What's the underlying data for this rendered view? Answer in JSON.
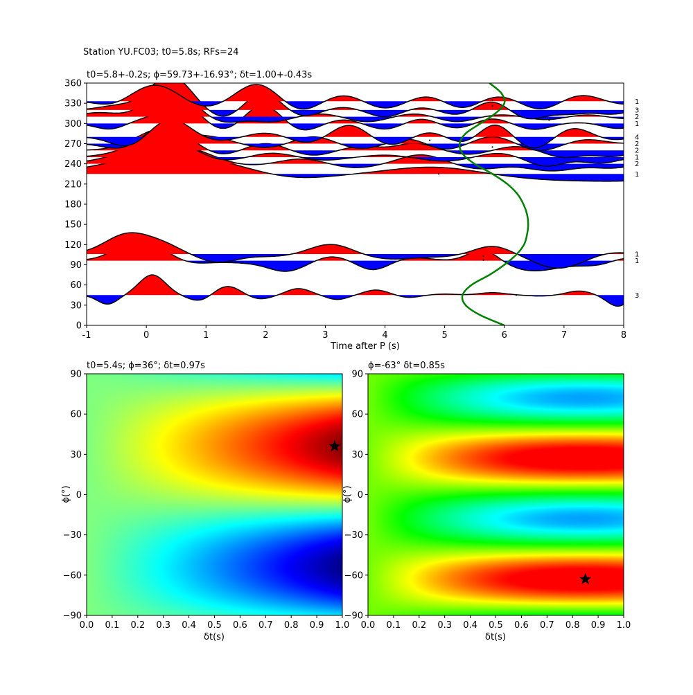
{
  "suptitle": "Station YU.FC03; t0=5.8s; RFs=24",
  "chart_data": [
    {
      "type": "line",
      "id": "rf_traces",
      "title": "t0=5.8+-0.2s; ϕ=59.73+-16.93°; δt=1.00+-0.43s",
      "xlabel": "Time after P (s)",
      "ylabel": "",
      "xlim": [
        -1,
        8
      ],
      "ylim": [
        0,
        360
      ],
      "xticks": [
        -1,
        0,
        1,
        2,
        3,
        4,
        5,
        6,
        7,
        8
      ],
      "yticks": [
        0,
        30,
        60,
        90,
        120,
        150,
        180,
        210,
        240,
        270,
        300,
        330,
        360
      ],
      "grid": false,
      "positive_fill": "#ff0000",
      "negative_fill": "#0000ff",
      "traces": [
        {
          "baz": 45,
          "count": "3",
          "amp": 30,
          "peaks": [
            [
              -0.65,
              -0.45,
              0.17
            ],
            [
              0.1,
              1.0,
              0.22
            ],
            [
              0.9,
              -0.3,
              0.2
            ],
            [
              1.35,
              0.45,
              0.22
            ],
            [
              1.9,
              -0.2,
              0.2
            ],
            [
              2.55,
              0.32,
              0.2
            ],
            [
              3.2,
              -0.22,
              0.18
            ],
            [
              3.85,
              0.25,
              0.2
            ],
            [
              4.4,
              -0.12,
              0.18
            ],
            [
              5.0,
              0.05,
              0.2
            ],
            [
              5.8,
              0.12,
              0.22
            ],
            [
              6.6,
              -0.05,
              0.2
            ],
            [
              7.25,
              0.2,
              0.2
            ],
            [
              7.9,
              -0.55,
              0.18
            ]
          ]
        },
        {
          "baz": 96,
          "count": "1",
          "amp": 30,
          "peaks": [
            [
              -0.1,
              1.05,
              0.38
            ],
            [
              0.75,
              -0.15,
              0.3
            ],
            [
              1.7,
              -0.1,
              0.4
            ],
            [
              2.35,
              -0.5,
              0.3
            ],
            [
              3.1,
              0.22,
              0.25
            ],
            [
              3.8,
              -0.45,
              0.25
            ],
            [
              4.5,
              0.15,
              0.28
            ],
            [
              5.65,
              0.6,
              0.25
            ],
            [
              6.5,
              -0.5,
              0.45
            ],
            [
              7.5,
              -0.2,
              0.3
            ],
            [
              8.0,
              0.15,
              0.2
            ]
          ]
        },
        {
          "baz": 106,
          "count": "1",
          "amp": 30,
          "peaks": [
            [
              -0.3,
              1.0,
              0.38
            ],
            [
              0.3,
              0.35,
              0.3
            ],
            [
              1.2,
              -0.4,
              0.32
            ],
            [
              2.1,
              -0.12,
              0.4
            ],
            [
              3.1,
              0.5,
              0.35
            ],
            [
              4.1,
              -0.25,
              0.45
            ],
            [
              5.0,
              -0.1,
              0.35
            ],
            [
              5.8,
              0.4,
              0.3
            ],
            [
              6.9,
              -0.7,
              0.4
            ],
            [
              7.8,
              0.1,
              0.25
            ]
          ]
        },
        {
          "baz": 225,
          "count": "1",
          "amp": 30,
          "peaks": [
            [
              0.4,
              1.0,
              0.95
            ],
            [
              2.5,
              -0.25,
              0.6
            ],
            [
              4.8,
              0.35,
              0.7
            ],
            [
              7.0,
              -0.3,
              0.9
            ],
            [
              8.2,
              -0.2,
              0.6
            ]
          ]
        },
        {
          "baz": 240,
          "count": "2",
          "amp": 30,
          "peaks": [
            [
              0.3,
              1.05,
              0.65
            ],
            [
              1.6,
              -0.15,
              0.4
            ],
            [
              2.6,
              0.25,
              0.35
            ],
            [
              3.5,
              -0.2,
              0.35
            ],
            [
              4.6,
              0.45,
              0.35
            ],
            [
              5.6,
              -0.25,
              0.35
            ],
            [
              6.8,
              -0.35,
              0.4
            ],
            [
              7.8,
              -0.2,
              0.3
            ]
          ]
        },
        {
          "baz": 250,
          "count": "1",
          "amp": 30,
          "peaks": [
            [
              0.25,
              1.0,
              0.5
            ],
            [
              1.2,
              -0.25,
              0.35
            ],
            [
              2.1,
              0.2,
              0.3
            ],
            [
              3.0,
              -0.15,
              0.3
            ],
            [
              4.0,
              0.1,
              0.3
            ],
            [
              5.0,
              -0.2,
              0.35
            ],
            [
              5.9,
              0.2,
              0.3
            ],
            [
              6.7,
              -0.45,
              0.3
            ],
            [
              7.6,
              -0.3,
              0.3
            ]
          ]
        },
        {
          "baz": 260,
          "count": "2",
          "amp": 30,
          "peaks": [
            [
              0.3,
              1.1,
              0.45
            ],
            [
              1.2,
              -0.3,
              0.3
            ],
            [
              2.0,
              0.35,
              0.3
            ],
            [
              2.8,
              -0.25,
              0.3
            ],
            [
              3.6,
              0.2,
              0.3
            ],
            [
              4.5,
              0.35,
              0.3
            ],
            [
              5.4,
              -0.2,
              0.3
            ],
            [
              6.2,
              0.2,
              0.3
            ],
            [
              7.0,
              -0.35,
              0.3
            ],
            [
              7.8,
              -0.3,
              0.3
            ]
          ]
        },
        {
          "baz": 270,
          "count": "2",
          "amp": 30,
          "peaks": [
            [
              -0.4,
              -0.3,
              0.3
            ],
            [
              0.3,
              0.85,
              0.35
            ],
            [
              1.1,
              0.3,
              0.3
            ],
            [
              2.0,
              -0.2,
              0.3
            ],
            [
              2.8,
              0.35,
              0.3
            ],
            [
              3.6,
              -0.25,
              0.3
            ],
            [
              4.4,
              0.25,
              0.28
            ],
            [
              5.0,
              -0.3,
              0.28
            ],
            [
              5.8,
              0.35,
              0.28
            ],
            [
              6.6,
              -0.35,
              0.28
            ],
            [
              7.4,
              0.2,
              0.28
            ]
          ]
        },
        {
          "baz": 280,
          "count": "4",
          "amp": 30,
          "peaks": [
            [
              -0.3,
              -0.5,
              0.3
            ],
            [
              0.4,
              0.9,
              0.32
            ],
            [
              1.2,
              -0.2,
              0.3
            ],
            [
              2.0,
              0.2,
              0.3
            ],
            [
              2.7,
              -0.3,
              0.28
            ],
            [
              3.4,
              0.6,
              0.28
            ],
            [
              4.1,
              -0.4,
              0.28
            ],
            [
              4.75,
              0.25,
              0.25
            ],
            [
              5.3,
              -0.3,
              0.25
            ],
            [
              5.85,
              0.65,
              0.25
            ],
            [
              6.5,
              -0.6,
              0.28
            ],
            [
              7.15,
              0.45,
              0.28
            ],
            [
              7.8,
              -0.15,
              0.25
            ]
          ]
        },
        {
          "baz": 300,
          "count": "1",
          "amp": 30,
          "peaks": [
            [
              -0.6,
              -0.3,
              0.25
            ],
            [
              0.0,
              0.2,
              0.3
            ],
            [
              0.6,
              1.0,
              0.3
            ],
            [
              1.3,
              -0.4,
              0.3
            ],
            [
              1.95,
              0.95,
              0.3
            ],
            [
              2.6,
              -0.4,
              0.28
            ],
            [
              3.3,
              0.2,
              0.28
            ],
            [
              4.0,
              -0.3,
              0.28
            ],
            [
              4.6,
              0.25,
              0.26
            ],
            [
              5.2,
              -0.25,
              0.26
            ],
            [
              5.8,
              0.25,
              0.26
            ],
            [
              6.5,
              -0.3,
              0.28
            ],
            [
              7.2,
              0.05,
              0.28
            ],
            [
              7.9,
              -0.25,
              0.25
            ]
          ]
        },
        {
          "baz": 310,
          "count": "2",
          "amp": 30,
          "peaks": [
            [
              -0.8,
              0.2,
              0.3
            ],
            [
              0.4,
              1.55,
              0.35
            ],
            [
              1.3,
              -0.3,
              0.3
            ],
            [
              2.1,
              -0.25,
              0.3
            ],
            [
              2.9,
              0.15,
              0.3
            ],
            [
              3.7,
              -0.25,
              0.3
            ],
            [
              4.5,
              0.15,
              0.28
            ],
            [
              5.2,
              -0.25,
              0.28
            ],
            [
              5.95,
              0.1,
              0.28
            ],
            [
              6.7,
              -0.15,
              0.28
            ],
            [
              7.4,
              0.1,
              0.28
            ],
            [
              8.0,
              -0.1,
              0.25
            ]
          ]
        },
        {
          "baz": 320,
          "count": "3",
          "amp": 30,
          "peaks": [
            [
              -0.5,
              0.2,
              0.3
            ],
            [
              0.4,
              1.7,
              0.35
            ],
            [
              1.3,
              -0.45,
              0.3
            ],
            [
              1.95,
              0.9,
              0.3
            ],
            [
              2.6,
              -0.35,
              0.28
            ],
            [
              3.3,
              0.15,
              0.28
            ],
            [
              4.0,
              -0.35,
              0.28
            ],
            [
              4.6,
              0.15,
              0.26
            ],
            [
              5.2,
              -0.25,
              0.26
            ],
            [
              5.8,
              0.45,
              0.26
            ],
            [
              6.4,
              -0.45,
              0.28
            ],
            [
              7.1,
              -0.2,
              0.28
            ],
            [
              7.8,
              -0.2,
              0.25
            ]
          ]
        },
        {
          "baz": 333,
          "count": "1",
          "amp": 30,
          "peaks": [
            [
              -0.6,
              -0.2,
              0.25
            ],
            [
              0.15,
              0.8,
              0.35
            ],
            [
              1.0,
              -0.3,
              0.3
            ],
            [
              1.85,
              0.85,
              0.32
            ],
            [
              2.6,
              -0.45,
              0.28
            ],
            [
              3.3,
              0.3,
              0.28
            ],
            [
              4.0,
              -0.35,
              0.28
            ],
            [
              4.7,
              0.25,
              0.26
            ],
            [
              5.3,
              -0.35,
              0.26
            ],
            [
              5.9,
              0.25,
              0.28
            ],
            [
              6.6,
              -0.4,
              0.28
            ],
            [
              7.3,
              0.3,
              0.28
            ],
            [
              8.0,
              -0.15,
              0.25
            ]
          ]
        }
      ],
      "dots": [
        [
          4.75,
          275
        ],
        [
          4.75,
          245
        ],
        [
          4.9,
          225
        ],
        [
          5.65,
          103
        ],
        [
          5.65,
          97
        ],
        [
          5.8,
          326
        ],
        [
          5.8,
          265
        ],
        [
          5.8,
          335
        ],
        [
          6.75,
          305
        ],
        [
          6.2,
          45
        ]
      ],
      "predicted_curve": {
        "color": "#008000",
        "label": "",
        "baz": [
          0,
          15,
          30,
          45,
          60,
          75,
          90,
          105,
          120,
          135,
          150,
          165,
          180,
          195,
          210,
          225,
          240,
          255,
          270,
          285,
          300,
          315,
          330,
          345,
          360
        ],
        "t0": [
          6.0,
          5.6,
          5.35,
          5.3,
          5.45,
          5.75,
          6.0,
          6.2,
          6.33,
          6.38,
          6.4,
          6.38,
          6.32,
          6.22,
          6.05,
          5.8,
          5.5,
          5.3,
          5.25,
          5.35,
          5.6,
          5.85,
          6.0,
          5.95,
          5.75
        ]
      }
    },
    {
      "type": "heatmap",
      "id": "grid_left",
      "title": "t0=5.4s; ϕ=36°; δt=0.97s",
      "xlabel": "δt(s)",
      "ylabel": "ϕ(°)",
      "xlim": [
        0.0,
        1.0
      ],
      "ylim": [
        -90,
        90
      ],
      "xticks": [
        0.0,
        0.1,
        0.2,
        0.3,
        0.4,
        0.5,
        0.6,
        0.7,
        0.8,
        0.9,
        1.0
      ],
      "yticks": [
        -90,
        -60,
        -30,
        0,
        30,
        60,
        90
      ],
      "colormap": "jet",
      "best": {
        "dt": 0.97,
        "phi": 36
      }
    },
    {
      "type": "heatmap",
      "id": "grid_right",
      "title": "ϕ=-63° δt=0.85s",
      "xlabel": "δt(s)",
      "ylabel": "ϕ(°)",
      "xlim": [
        0.0,
        1.0
      ],
      "ylim": [
        -90,
        90
      ],
      "xticks": [
        0.0,
        0.1,
        0.2,
        0.3,
        0.4,
        0.5,
        0.6,
        0.7,
        0.8,
        0.9,
        1.0
      ],
      "yticks": [
        -90,
        -60,
        -30,
        0,
        30,
        60,
        90
      ],
      "colormap": "gist_rainbow",
      "best": {
        "dt": 0.85,
        "phi": -63
      }
    }
  ]
}
